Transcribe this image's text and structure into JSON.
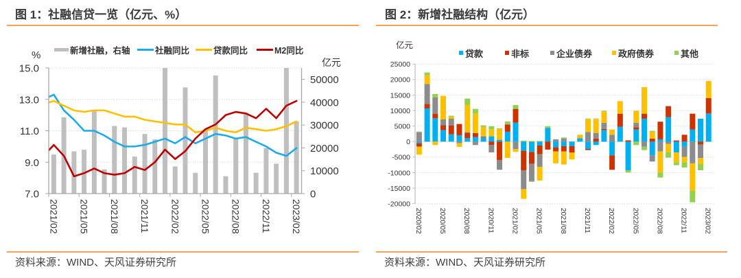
{
  "figures": [
    {
      "title": "图 1：社融信贷一览（亿元、%）",
      "source": "资料来源：WIND、天风证券研究所"
    },
    {
      "title": "图 2：新增社融结构（亿元）",
      "source": "资料来源：WIND、天风证券研究所"
    }
  ],
  "chart_data": [
    {
      "type": "bar+line",
      "title": "图 1：社融信贷一览（亿元、%）",
      "categories": [
        "2021/02",
        "2021/03",
        "2021/04",
        "2021/05",
        "2021/06",
        "2021/07",
        "2021/08",
        "2021/09",
        "2021/10",
        "2021/11",
        "2021/12",
        "2022/01",
        "2022/02",
        "2022/03",
        "2022/04",
        "2022/05",
        "2022/06",
        "2022/07",
        "2022/08",
        "2022/09",
        "2022/10",
        "2022/11",
        "2022/12",
        "2023/01",
        "2023/02"
      ],
      "x_tick_labels": [
        "2021/02",
        "2021/05",
        "2021/08",
        "2021/11",
        "2022/02",
        "2022/05",
        "2022/08",
        "2022/11",
        "2023/02"
      ],
      "left_axis": {
        "label": "%",
        "min": 7,
        "max": 15,
        "ticks": [
          7,
          9,
          11,
          13,
          15
        ],
        "tick_labels": [
          "7.0",
          "9.0",
          "11.0",
          "13.0",
          "15.0"
        ]
      },
      "right_axis": {
        "label": "亿元",
        "min": 0,
        "max": 55000,
        "ticks": [
          0,
          10000,
          20000,
          30000,
          40000,
          50000
        ],
        "tick_labels": [
          "0",
          "10000",
          "20000",
          "30000",
          "40000",
          "50000"
        ]
      },
      "grid": true,
      "legend_position": "top",
      "series": [
        {
          "name": "新增社融，右轴",
          "type": "bar",
          "axis": "right",
          "color": "#BFBFBF",
          "values": [
            17100,
            33400,
            18500,
            19200,
            36700,
            10600,
            29600,
            29000,
            16200,
            26100,
            23700,
            55000,
            11900,
            46500,
            9100,
            27900,
            51700,
            7600,
            24300,
            35300,
            9100,
            19900,
            13100,
            55000,
            31600
          ]
        },
        {
          "name": "社融同比",
          "type": "line",
          "axis": "left",
          "color": "#1AABE8",
          "value_before_first": 13.0,
          "values": [
            13.3,
            12.3,
            11.7,
            11.0,
            11.0,
            10.7,
            10.3,
            10.0,
            10.0,
            10.1,
            10.3,
            10.5,
            10.2,
            10.6,
            10.2,
            10.5,
            10.8,
            10.7,
            10.5,
            10.6,
            10.3,
            10.0,
            9.6,
            9.4,
            9.9
          ]
        },
        {
          "name": "贷款同比",
          "type": "line",
          "axis": "left",
          "color": "#FFC000",
          "value_before_first": 12.7,
          "values": [
            12.9,
            12.6,
            12.3,
            12.2,
            12.3,
            12.3,
            12.1,
            11.9,
            11.9,
            11.7,
            11.6,
            11.5,
            11.4,
            11.4,
            10.9,
            11.0,
            11.2,
            11.0,
            10.9,
            11.2,
            11.1,
            11.0,
            11.1,
            11.3,
            11.6
          ]
        },
        {
          "name": "M2同比",
          "type": "line",
          "axis": "left",
          "color": "#C00000",
          "value_before_first": 9.4,
          "values": [
            10.1,
            9.4,
            8.1,
            8.3,
            8.6,
            8.3,
            8.2,
            8.3,
            8.7,
            8.5,
            9.0,
            9.8,
            9.2,
            9.7,
            10.5,
            11.1,
            11.4,
            12.0,
            12.2,
            12.1,
            11.8,
            12.4,
            11.8,
            12.6,
            12.9
          ]
        }
      ]
    },
    {
      "type": "bar",
      "stacked": true,
      "title": "图 2：新增社融结构（亿元）",
      "categories": [
        "2020/02",
        "2020/03",
        "2020/04",
        "2020/05",
        "2020/06",
        "2020/07",
        "2020/08",
        "2020/09",
        "2020/10",
        "2020/11",
        "2020/12",
        "2021/01",
        "2021/02",
        "2021/03",
        "2021/04",
        "2021/05",
        "2021/06",
        "2021/07",
        "2021/08",
        "2021/09",
        "2021/10",
        "2021/11",
        "2021/12",
        "2022/01",
        "2022/02",
        "2022/03",
        "2022/04",
        "2022/05",
        "2022/06",
        "2022/07",
        "2022/08",
        "2022/09",
        "2022/10",
        "2022/11",
        "2022/12",
        "2023/01",
        "2023/02"
      ],
      "x_tick_labels": [
        "2020/02",
        "2020/05",
        "2020/08",
        "2020/11",
        "2021/02",
        "2021/05",
        "2021/08",
        "2021/11",
        "2022/02",
        "2022/05",
        "2022/08",
        "2022/11",
        "2023/02"
      ],
      "y_axis": {
        "label": "亿元",
        "min": -20000,
        "max": 25000,
        "ticks": [
          -20000,
          -15000,
          -10000,
          -5000,
          0,
          5000,
          10000,
          15000,
          20000,
          25000
        ],
        "tick_labels": [
          "-20000",
          "-15000",
          "-10000",
          "-5000",
          "0",
          "5000",
          "10000",
          "15000",
          "20000",
          "25000"
        ]
      },
      "grid": true,
      "legend_position": "top",
      "series": [
        {
          "name": "贷款",
          "color": "#00B0F0",
          "values": [
            -520,
            10690,
            7520,
            3690,
            2360,
            2070,
            1110,
            1480,
            1330,
            1700,
            590,
            3170,
            6120,
            -2950,
            -3320,
            -1250,
            4430,
            -1840,
            -1480,
            -1480,
            1110,
            -2360,
            -1110,
            3690,
            -4430,
            4790,
            -9220,
            3910,
            7380,
            -4430,
            740,
            7890,
            -3470,
            -1620,
            3910,
            7380,
            9070
          ]
        },
        {
          "name": "非标",
          "color": "#CC3300",
          "values": [
            -1100,
            1480,
            1480,
            1620,
            2800,
            3610,
            1700,
            1250,
            220,
            -1110,
            -5900,
            2360,
            4430,
            -6270,
            -3830,
            -2800,
            -2580,
            -1330,
            -1700,
            -2070,
            0,
            -370,
            960,
            370,
            -4650,
            4200,
            370,
            740,
            1620,
            960,
            5680,
            3540,
            370,
            2210,
            5090,
            -960,
            4940
          ]
        },
        {
          "name": "企业债券",
          "color": "#8C8C8C",
          "values": [
            3020,
            6420,
            5240,
            1840,
            2210,
            -520,
            300,
            -1110,
            150,
            -2360,
            -3170,
            0,
            -2430,
            -6120,
            -5600,
            -4060,
            0,
            740,
            1030,
            0,
            0,
            3100,
            1840,
            1990,
            2210,
            0,
            0,
            1400,
            -1620,
            -1990,
            -3170,
            -740,
            0,
            -3320,
            -7000,
            -4350,
            0
          ]
        },
        {
          "name": "政府债券",
          "color": "#FFC000",
          "values": [
            -2580,
            2800,
            -1110,
            7600,
            660,
            -1180,
            8700,
            6270,
            3020,
            2290,
            3540,
            -5240,
            -890,
            -3100,
            200,
            -4430,
            0,
            -3830,
            -4200,
            -2210,
            1110,
            4200,
            4500,
            3690,
            1700,
            4060,
            150,
            3910,
            8550,
            2210,
            -6790,
            -2730,
            -3170,
            -1700,
            -8850,
            -1920,
            5530
          ]
        },
        {
          "name": "其他",
          "color": "#92D050",
          "values": [
            220,
            890,
            1110,
            0,
            300,
            0,
            2070,
            1550,
            520,
            960,
            150,
            960,
            1250,
            300,
            -220,
            200,
            520,
            0,
            300,
            0,
            0,
            150,
            150,
            220,
            0,
            0,
            -740,
            -1110,
            -1110,
            300,
            -1620,
            -1700,
            -960,
            -1700,
            -3690,
            -1990,
            0
          ]
        }
      ]
    }
  ]
}
